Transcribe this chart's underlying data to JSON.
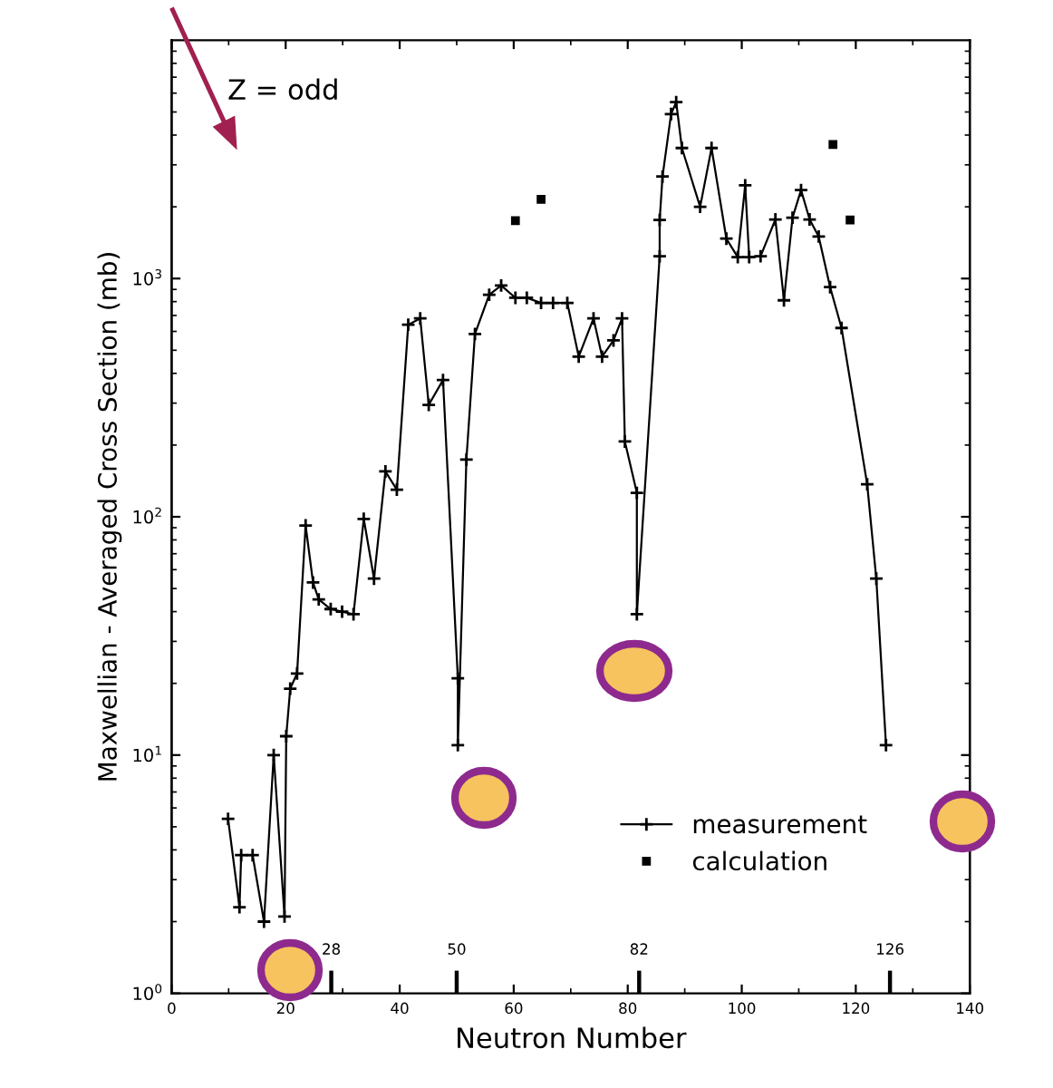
{
  "chart_data": {
    "type": "line",
    "xlabel": "Neutron Number",
    "ylabel": "Maxwellian - Averaged Cross Section (mb)",
    "series": [
      {
        "name": "measurement",
        "marker": "cross",
        "color": "#000000",
        "x": [
          9.9,
          11.9,
          12.2,
          14.2,
          16.2,
          17.9,
          19.8,
          20.1,
          20.8,
          22.0,
          23.5,
          24.8,
          25.8,
          27.9,
          29.9,
          31.9,
          33.7,
          35.5,
          37.5,
          39.5,
          41.5,
          43.6,
          45.1,
          47.6,
          50.2,
          50.2,
          51.7,
          53.2,
          55.7,
          57.8,
          60.3,
          62.3,
          64.8,
          66.9,
          69.4,
          71.4,
          74.0,
          75.5,
          77.5,
          79.0,
          79.5,
          81.6,
          81.6,
          85.6,
          85.6,
          86.1,
          87.6,
          88.5,
          89.5,
          92.7,
          94.7,
          97.3,
          99.3,
          100.6,
          101.3,
          103.3,
          105.9,
          107.4,
          108.9,
          110.4,
          111.9,
          113.5,
          115.5,
          117.5,
          122.0,
          123.6,
          125.3
        ],
        "values": [
          5.4,
          2.3,
          3.8,
          3.8,
          2.0,
          10,
          2.1,
          12,
          19,
          22,
          92,
          53,
          45,
          41,
          40,
          39,
          98,
          55,
          155,
          130,
          640,
          680,
          295,
          375,
          21,
          11,
          174,
          585,
          855,
          935,
          830,
          830,
          790,
          790,
          790,
          470,
          680,
          470,
          550,
          680,
          207,
          126,
          39,
          1240,
          1760,
          2680,
          4900,
          5500,
          3530,
          2000,
          3530,
          1470,
          1230,
          2460,
          1230,
          1240,
          1770,
          810,
          1800,
          2350,
          1770,
          1500,
          920,
          620,
          137,
          55,
          11
        ]
      },
      {
        "name": "calculation",
        "type": "scatter",
        "marker": "square",
        "color": "#000000",
        "x": [
          60.3,
          64.8,
          116.0,
          119.0
        ],
        "values": [
          1750,
          2150,
          3650,
          1760
        ]
      }
    ],
    "log": "y",
    "xlim": [
      0,
      140
    ],
    "ylim": [
      1,
      10000
    ],
    "xticks": [
      0,
      20,
      40,
      60,
      80,
      100,
      120,
      140
    ],
    "yticks": [
      {
        "value": 1,
        "label": "10$^{0}$"
      },
      {
        "value": 10,
        "label": "10$^{1}$"
      },
      {
        "value": 100,
        "label": "10$^{2}$"
      },
      {
        "value": 1000,
        "label": "10$^{3}$"
      }
    ],
    "legend": "bottom right",
    "grid": false,
    "x2lim": [
      0,
      140
    ],
    "x2ticks": [
      28,
      50,
      82,
      126
    ],
    "annotations": [
      "Z = odd"
    ]
  }
}
